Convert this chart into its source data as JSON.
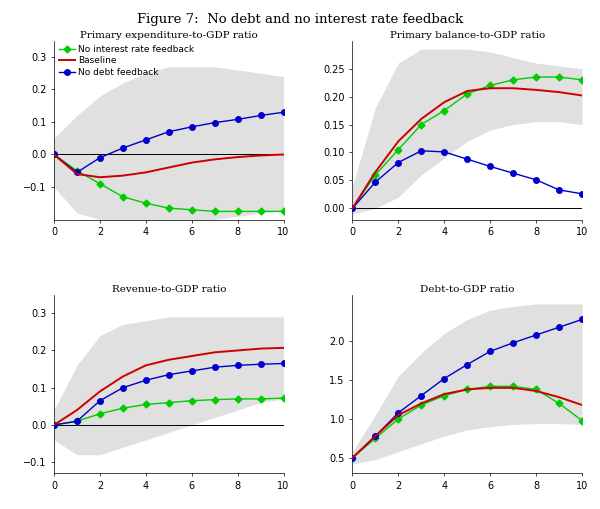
{
  "title": "Figure 7:  No debt and no interest rate feedback",
  "title_fontsize": 9.5,
  "subplot_title_fontsize": 7.5,
  "tick_fontsize": 7,
  "legend_fontsize": 6.5,
  "subplot_titles": [
    "Primary expenditure-to-GDP ratio",
    "Primary balance-to-GDP ratio",
    "Revenue-to-GDP ratio",
    "Debt-to-GDP ratio"
  ],
  "x": [
    0,
    1,
    2,
    3,
    4,
    5,
    6,
    7,
    8,
    9,
    10
  ],
  "colors": {
    "green": "#00CC00",
    "red": "#CC0000",
    "blue": "#0000CC",
    "shade": "#BBBBBB"
  },
  "legend_labels": [
    "No interest rate feedback",
    "Baseline",
    "No debt feedback"
  ],
  "ax0": {
    "ylim": [
      -0.2,
      0.35
    ],
    "yticks": [
      -0.1,
      0.0,
      0.1,
      0.2,
      0.3
    ],
    "hline": 0.0,
    "green": [
      0.0,
      -0.05,
      -0.09,
      -0.13,
      -0.15,
      -0.165,
      -0.17,
      -0.175,
      -0.175,
      -0.175,
      -0.175
    ],
    "red": [
      0.0,
      -0.06,
      -0.07,
      -0.065,
      -0.055,
      -0.04,
      -0.025,
      -0.015,
      -0.008,
      -0.003,
      0.0
    ],
    "blue": [
      0.0,
      -0.055,
      -0.01,
      0.02,
      0.045,
      0.07,
      0.085,
      0.098,
      0.108,
      0.12,
      0.13
    ],
    "shade_upper": [
      0.05,
      0.12,
      0.18,
      0.22,
      0.25,
      0.27,
      0.27,
      0.27,
      0.26,
      0.25,
      0.24
    ],
    "shade_lower": [
      -0.1,
      -0.18,
      -0.2,
      -0.22,
      -0.22,
      -0.22,
      -0.21,
      -0.2,
      -0.19,
      -0.18,
      -0.17
    ]
  },
  "ax1": {
    "ylim": [
      -0.02,
      0.3
    ],
    "yticks": [
      0.0,
      0.05,
      0.1,
      0.15,
      0.2,
      0.25
    ],
    "hline": 0.0,
    "green": [
      0.0,
      0.06,
      0.105,
      0.15,
      0.175,
      0.205,
      0.22,
      0.23,
      0.235,
      0.235,
      0.23
    ],
    "red": [
      0.0,
      0.065,
      0.12,
      0.16,
      0.19,
      0.21,
      0.215,
      0.215,
      0.212,
      0.208,
      0.202
    ],
    "blue": [
      0.0,
      0.047,
      0.082,
      0.103,
      0.101,
      0.088,
      0.075,
      0.063,
      0.051,
      0.033,
      0.026
    ],
    "shade_upper": [
      0.04,
      0.18,
      0.26,
      0.285,
      0.285,
      0.285,
      0.28,
      0.27,
      0.26,
      0.255,
      0.25
    ],
    "shade_lower": [
      -0.01,
      0.0,
      0.02,
      0.06,
      0.09,
      0.12,
      0.14,
      0.15,
      0.155,
      0.155,
      0.15
    ]
  },
  "ax2": {
    "ylim": [
      -0.13,
      0.35
    ],
    "yticks": [
      -0.1,
      0.0,
      0.1,
      0.2,
      0.3
    ],
    "hline": 0.0,
    "green": [
      0.0,
      0.01,
      0.03,
      0.045,
      0.055,
      0.06,
      0.065,
      0.068,
      0.07,
      0.07,
      0.072
    ],
    "red": [
      0.0,
      0.04,
      0.09,
      0.13,
      0.16,
      0.175,
      0.185,
      0.195,
      0.2,
      0.205,
      0.207
    ],
    "blue": [
      0.0,
      0.01,
      0.065,
      0.1,
      0.12,
      0.135,
      0.145,
      0.155,
      0.16,
      0.163,
      0.165
    ],
    "shade_upper": [
      0.04,
      0.16,
      0.24,
      0.27,
      0.28,
      0.29,
      0.29,
      0.29,
      0.29,
      0.29,
      0.29
    ],
    "shade_lower": [
      -0.04,
      -0.08,
      -0.08,
      -0.06,
      -0.04,
      -0.02,
      0.0,
      0.02,
      0.04,
      0.06,
      0.07
    ]
  },
  "ax3": {
    "ylim": [
      0.3,
      2.6
    ],
    "yticks": [
      0.5,
      1.0,
      1.5,
      2.0
    ],
    "hline": null,
    "green": [
      0.5,
      0.75,
      1.0,
      1.18,
      1.3,
      1.38,
      1.42,
      1.42,
      1.38,
      1.2,
      0.98
    ],
    "red": [
      0.5,
      0.78,
      1.05,
      1.2,
      1.32,
      1.38,
      1.4,
      1.4,
      1.36,
      1.28,
      1.18
    ],
    "blue": [
      0.5,
      0.78,
      1.08,
      1.3,
      1.52,
      1.7,
      1.87,
      1.98,
      2.08,
      2.18,
      2.28
    ],
    "shade_upper": [
      0.58,
      1.05,
      1.55,
      1.85,
      2.1,
      2.28,
      2.4,
      2.45,
      2.48,
      2.48,
      2.48
    ],
    "shade_lower": [
      0.42,
      0.48,
      0.58,
      0.68,
      0.78,
      0.86,
      0.9,
      0.93,
      0.94,
      0.94,
      0.93
    ]
  }
}
